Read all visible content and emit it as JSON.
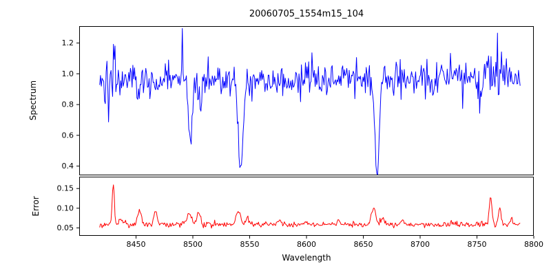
{
  "figure": {
    "background": "#ffffff",
    "axis_color": "#000000"
  },
  "chart_data": {
    "type": "line",
    "title": "20060705_1554m15_104",
    "xlabel": "Wavelength",
    "xlim": [
      8400,
      8800
    ],
    "xticks": [
      8450,
      8500,
      8550,
      8600,
      8650,
      8700,
      8750,
      8800
    ],
    "xtick_labels": [
      "8450",
      "8500",
      "8550",
      "8600",
      "8650",
      "8700",
      "8750",
      "8800"
    ],
    "x_start": 8418,
    "x_end": 8788,
    "n_points": 520,
    "seed": 42,
    "grid": false,
    "legend": "none",
    "panels": [
      {
        "name": "spectrum",
        "ylabel": "Spectrum",
        "color": "#0000ff",
        "ylim": [
          0.34,
          1.31
        ],
        "yticks": [
          0.4,
          0.6,
          0.8,
          1.0,
          1.2
        ],
        "ytick_labels": [
          "0.4",
          "0.6",
          "0.8",
          "1.0",
          "1.2"
        ],
        "model": {
          "continuum": 0.965,
          "slow_wave_amp": 0.012,
          "slow_wave_period": 37,
          "noise_sigma": 0.045,
          "tail_prob": 0.12,
          "tail_scale": 0.16,
          "noisy_regions": [
            {
              "center": 8430,
              "sigma_mult": 2.2,
              "halfwidth": 6
            },
            {
              "center": 8766,
              "sigma_mult": 2.0,
              "halfwidth": 8
            }
          ],
          "absorption_lines": [
            {
              "center": 8452,
              "depth": 0.13,
              "sigma": 1.2
            },
            {
              "center": 8468,
              "depth": 0.12,
              "sigma": 1.2
            },
            {
              "center": 8498,
              "depth": 0.47,
              "sigma": 1.6
            },
            {
              "center": 8507,
              "depth": 0.2,
              "sigma": 1.4
            },
            {
              "center": 8542,
              "depth": 0.59,
              "sigma": 2.0
            },
            {
              "center": 8662,
              "depth": 0.62,
              "sigma": 2.0
            },
            {
              "center": 8752,
              "depth": 0.2,
              "sigma": 1.4
            }
          ],
          "spikes": [
            {
              "x": 8491,
              "dy": 0.33
            },
            {
              "x": 8768,
              "dy": 0.3
            }
          ]
        }
      },
      {
        "name": "error",
        "ylabel": "Error",
        "color": "#ff0000",
        "ylim": [
          0.03,
          0.18
        ],
        "yticks": [
          0.05,
          0.1,
          0.15
        ],
        "ytick_labels": [
          "0.05",
          "0.10",
          "0.15"
        ],
        "model": {
          "baseline": 0.058,
          "noise_sigma": 0.0035,
          "tail_prob": 0.06,
          "tail_scale": 0.006,
          "bumps": [
            [
              8430,
              0.102,
              1.0
            ],
            [
              8436,
              0.018,
              1.2
            ],
            [
              8453,
              0.04,
              1.4
            ],
            [
              8467,
              0.034,
              1.4
            ],
            [
              8497,
              0.028,
              2.2
            ],
            [
              8505,
              0.034,
              1.4
            ],
            [
              8540,
              0.036,
              2.0
            ],
            [
              8548,
              0.016,
              1.4
            ],
            [
              8576,
              0.01,
              1.6
            ],
            [
              8600,
              0.006,
              2.0
            ],
            [
              8628,
              0.008,
              1.6
            ],
            [
              8659,
              0.046,
              1.8
            ],
            [
              8667,
              0.018,
              1.4
            ],
            [
              8684,
              0.012,
              1.4
            ],
            [
              8730,
              0.006,
              1.6
            ],
            [
              8762,
              0.068,
              1.2
            ],
            [
              8770,
              0.044,
              1.2
            ],
            [
              8780,
              0.02,
              1.1
            ]
          ]
        }
      }
    ]
  }
}
